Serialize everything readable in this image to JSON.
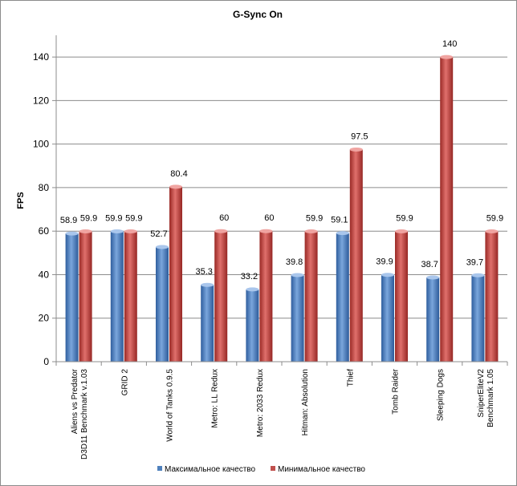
{
  "chart_data": {
    "type": "bar",
    "title": "G-Sync  On",
    "ylabel": "FPS",
    "xlabel": "",
    "ylim": [
      0,
      150
    ],
    "yticks": [
      0,
      20,
      40,
      60,
      80,
      100,
      120,
      140
    ],
    "grid": true,
    "legend_position": "bottom",
    "categories": [
      [
        "Aliens vs Predator",
        "D3D11 Benchmark v.1.03"
      ],
      [
        "GRID 2"
      ],
      [
        "World of Tanks 0.9.5"
      ],
      [
        "Metro: LL Redux"
      ],
      [
        "Metro: 2033 Redux"
      ],
      [
        "Hitman: Absolution"
      ],
      [
        "Thief"
      ],
      [
        "Tomb Raider"
      ],
      [
        "Sleeping Dogs"
      ],
      [
        "SniperEliteV2",
        "Benchmark 1.05"
      ]
    ],
    "series": [
      {
        "name": "Максимальное качество",
        "color": "#4f81bd",
        "values": [
          58.9,
          59.9,
          52.7,
          35.3,
          33.2,
          39.8,
          59.1,
          39.9,
          38.7,
          39.7
        ],
        "labels": [
          "58.9",
          "59.9",
          "52.7",
          "35.3",
          "33.2",
          "39.8",
          "59.1",
          "39.9",
          "38.7",
          "39.7"
        ]
      },
      {
        "name": "Минимальное качество",
        "color": "#c0504d",
        "values": [
          59.9,
          59.9,
          80.4,
          60,
          60,
          59.9,
          97.5,
          59.9,
          140,
          59.9
        ],
        "labels": [
          "59.9",
          "59.9",
          "80.4",
          "60",
          "60",
          "59.9",
          "97.5",
          "59.9",
          "140",
          "59.9"
        ]
      }
    ]
  }
}
